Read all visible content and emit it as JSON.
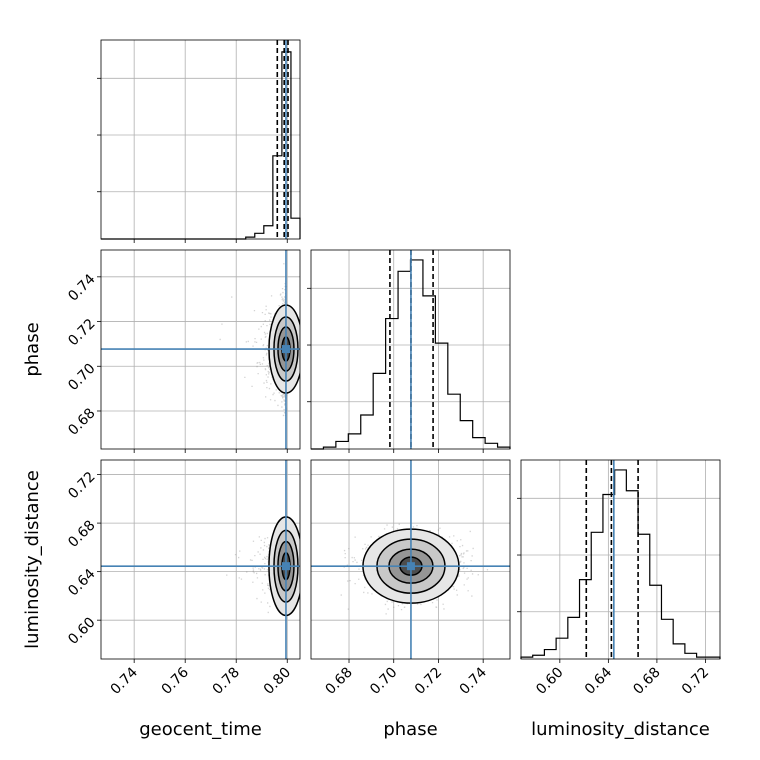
{
  "chart_data": {
    "type": "corner",
    "parameters": [
      "geocent_time",
      "phase",
      "luminosity_distance"
    ],
    "axis_labels": {
      "geocent_time": "geocent_time",
      "phase": "phase",
      "luminosity_distance": "luminosity_distance"
    },
    "ranges": {
      "geocent_time": [
        0.727,
        0.805
      ],
      "phase": [
        0.663,
        0.752
      ],
      "luminosity_distance": [
        0.568,
        0.732
      ]
    },
    "ticks": {
      "geocent_time": [
        "0.74",
        "0.76",
        "0.78",
        "0.80"
      ],
      "phase": [
        "0.68",
        "0.70",
        "0.72",
        "0.74"
      ],
      "luminosity_distance": [
        "0.60",
        "0.64",
        "0.68",
        "0.72"
      ]
    },
    "truths": {
      "geocent_time": 0.7995,
      "phase": 0.7077,
      "luminosity_distance": 0.6445
    },
    "quantiles": {
      "geocent_time": [
        0.7961,
        0.7988,
        0.8003
      ],
      "phase": [
        0.6983,
        0.7077,
        0.7176
      ],
      "luminosity_distance": [
        0.6218,
        0.6425,
        0.6645
      ]
    },
    "histograms": {
      "geocent_time": [
        0,
        0,
        0,
        0,
        0,
        0,
        0,
        0,
        0,
        0,
        0,
        0,
        0,
        0,
        0,
        0,
        0.01,
        0.03,
        0.07,
        0.44,
        0.99,
        0.11
      ],
      "phase": [
        0,
        0.01,
        0.04,
        0.08,
        0.18,
        0.4,
        0.69,
        0.94,
        1.0,
        0.81,
        0.56,
        0.29,
        0.15,
        0.06,
        0.03,
        0.01
      ],
      "luminosity_distance": [
        0.01,
        0.02,
        0.05,
        0.11,
        0.22,
        0.42,
        0.67,
        0.87,
        1.0,
        0.89,
        0.66,
        0.39,
        0.21,
        0.08,
        0.03,
        0.01,
        0.01
      ]
    },
    "truth_color": "#4682b4",
    "contour_color": "#000000",
    "scatter_color": "#808080",
    "grid": true
  }
}
